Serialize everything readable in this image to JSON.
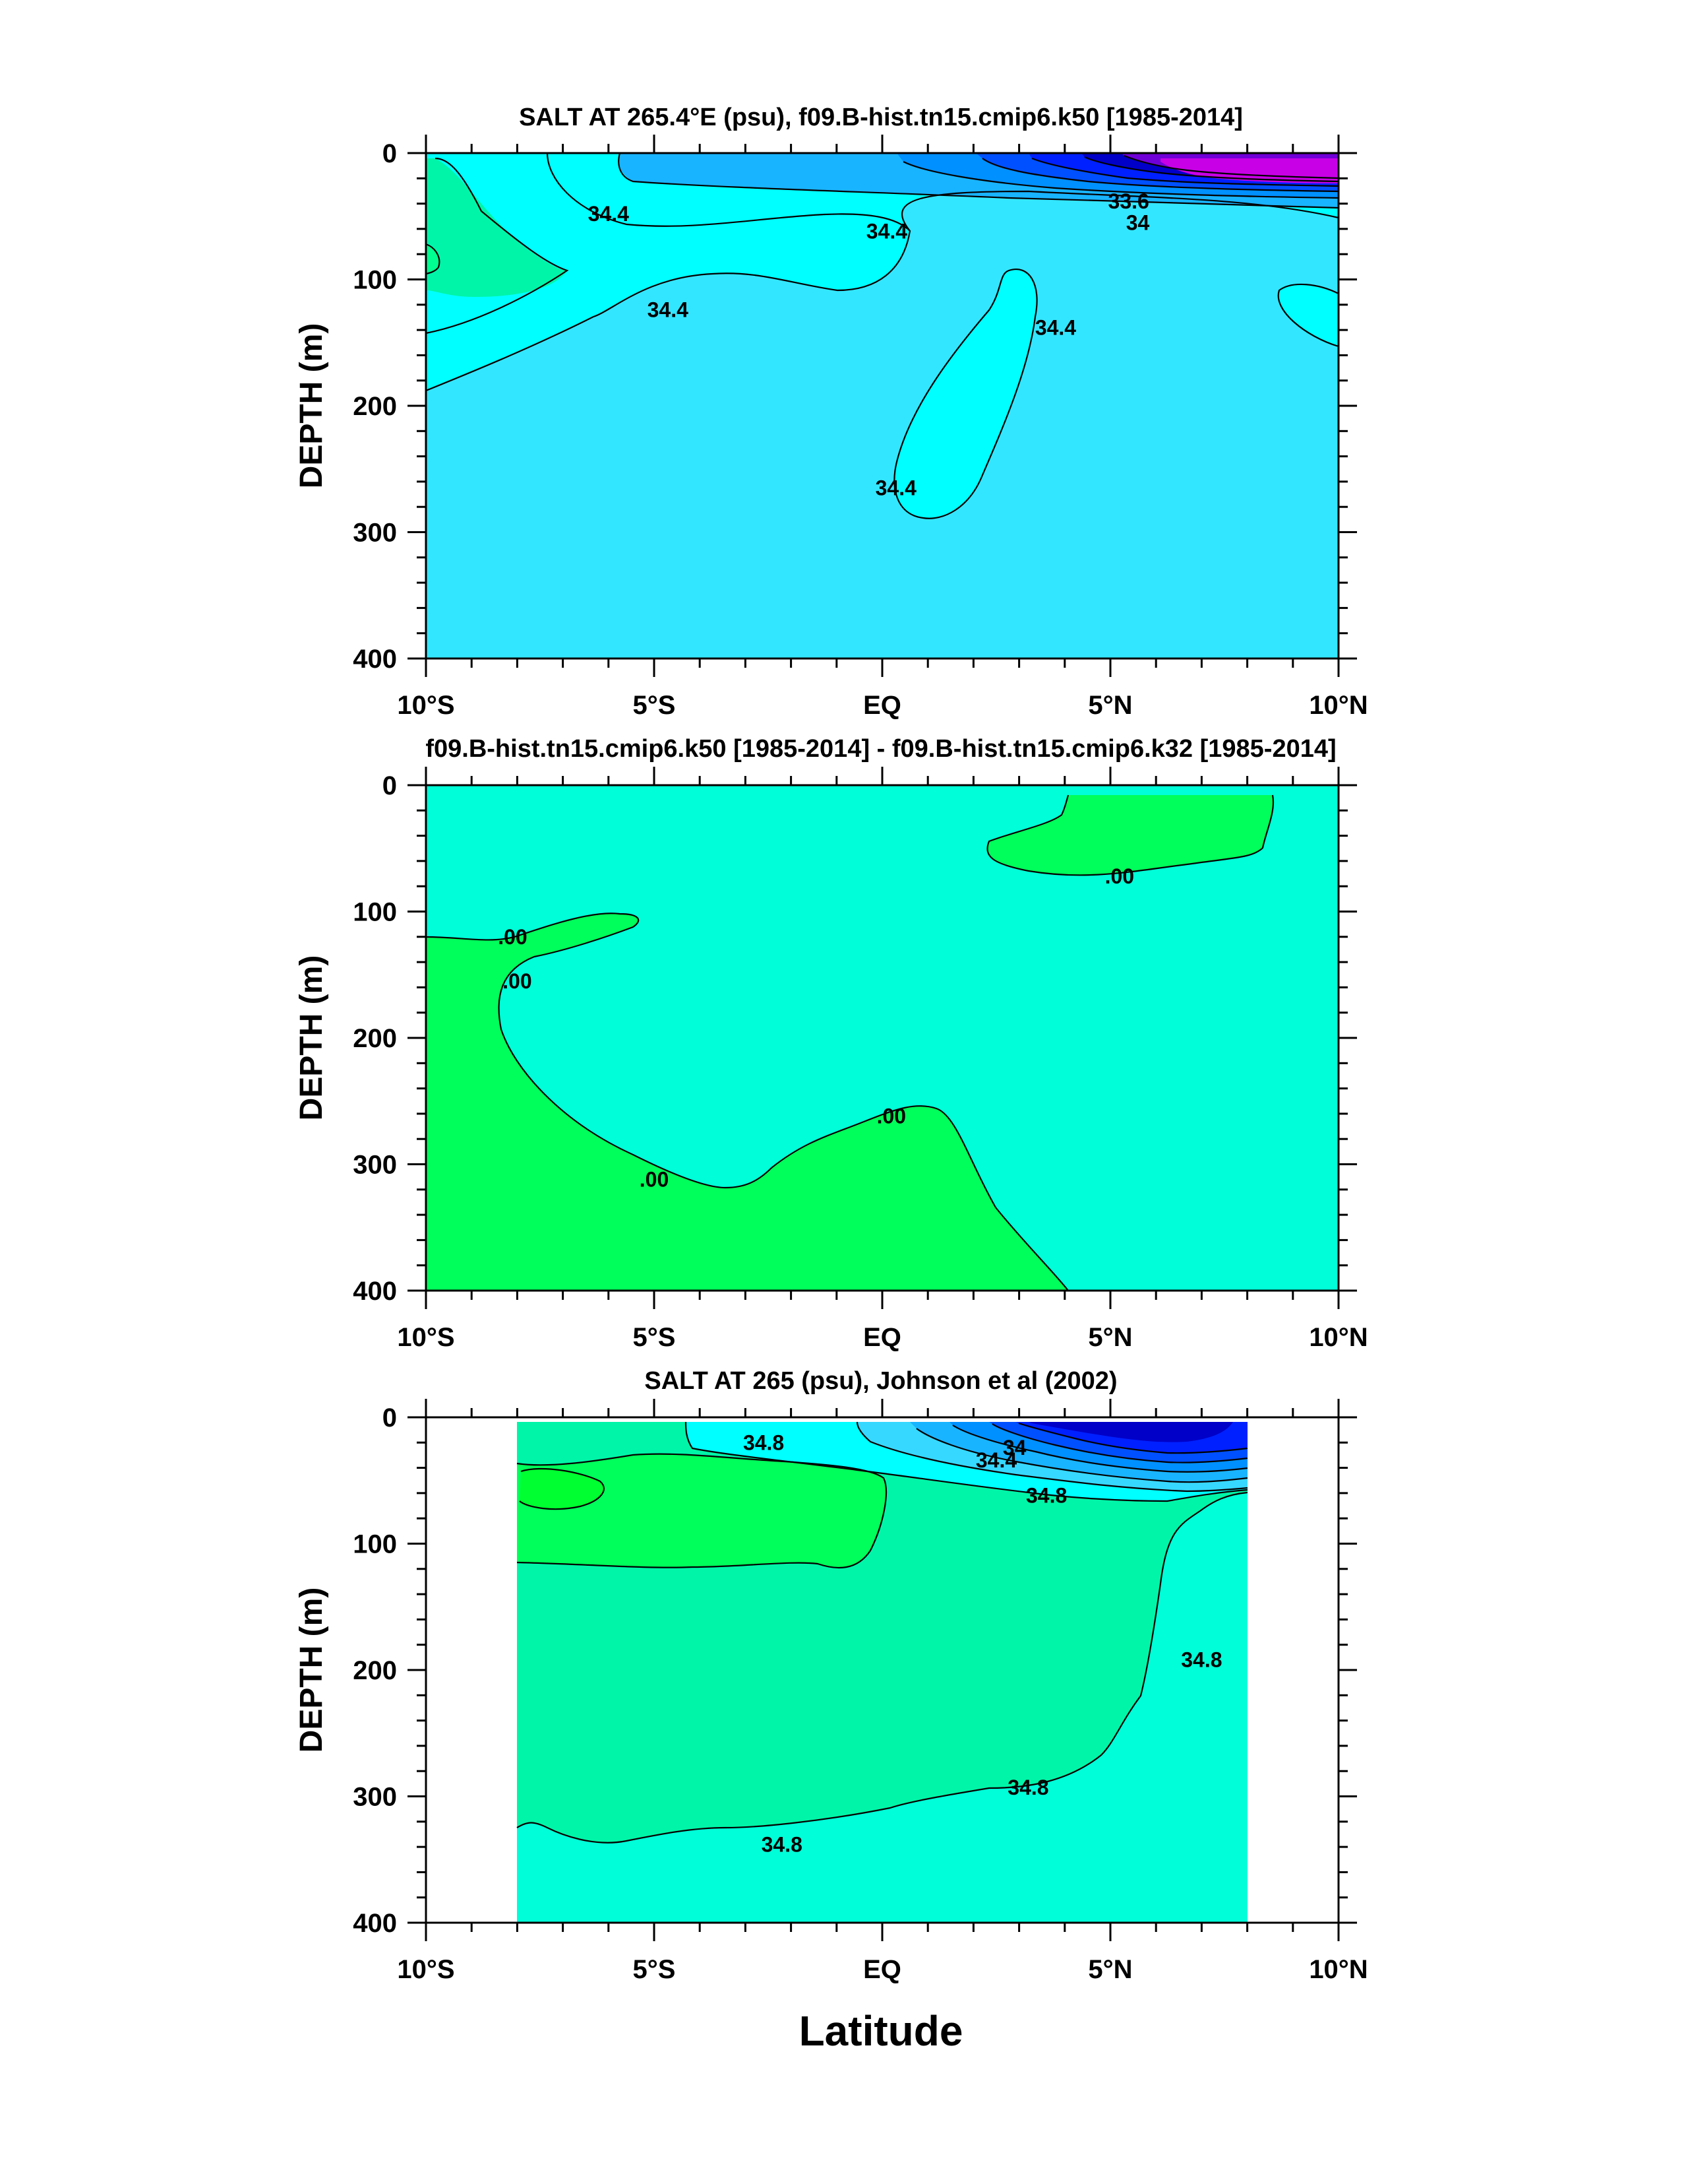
{
  "figure": {
    "xlabel": "Latitude",
    "colors": {
      "magenta": "#c800e6",
      "violet": "#6f00d8",
      "navy": "#0000c8",
      "blue": "#0020ff",
      "blue_mid": "#0050ff",
      "blue_light": "#0090ff",
      "sky": "#19b4ff",
      "sky2": "#37d8ff",
      "cyan_light": "#33e6ff",
      "cyan": "#00ffff",
      "aqua": "#00ffd8",
      "green_aqua": "#00f5a8",
      "green_light": "#00ff90",
      "green": "#00ff5a",
      "green_bright": "#00ff30"
    }
  },
  "chart_data": [
    {
      "type": "contour",
      "title": "SALT AT 265.4°E (psu), f09.B-hist.tn15.cmip6.k50 [1985-2014]",
      "xlabel": "",
      "ylabel": "DEPTH (m)",
      "xlim": [
        -10,
        10
      ],
      "ylim": [
        400,
        0
      ],
      "x_ticks": [
        -10,
        -5,
        0,
        5,
        10
      ],
      "x_tick_labels": [
        "10°S",
        "5°S",
        "EQ",
        "5°N",
        "10°N"
      ],
      "y_ticks": [
        0,
        100,
        200,
        300,
        400
      ],
      "y_tick_labels": [
        "0",
        "100",
        "200",
        "300",
        "400"
      ],
      "contour_labels": [
        {
          "text": "34.4",
          "x": -6.0,
          "y": 48
        },
        {
          "text": "34.4",
          "x": 0.1,
          "y": 62
        },
        {
          "text": "34.4",
          "x": -4.7,
          "y": 124
        },
        {
          "text": "34.4",
          "x": 3.8,
          "y": 138
        },
        {
          "text": "34.4",
          "x": 0.3,
          "y": 265
        },
        {
          "text": "33.6",
          "x": 5.4,
          "y": 38
        },
        {
          "text": "34",
          "x": 5.6,
          "y": 55
        }
      ]
    },
    {
      "type": "contour",
      "title": "f09.B-hist.tn15.cmip6.k50 [1985-2014] - f09.B-hist.tn15.cmip6.k32 [1985-2014]",
      "xlabel": "",
      "ylabel": "DEPTH (m)",
      "xlim": [
        -10,
        10
      ],
      "ylim": [
        400,
        0
      ],
      "x_ticks": [
        -10,
        -5,
        0,
        5,
        10
      ],
      "x_tick_labels": [
        "10°S",
        "5°S",
        "EQ",
        "5°N",
        "10°N"
      ],
      "y_ticks": [
        0,
        100,
        200,
        300,
        400
      ],
      "y_tick_labels": [
        "0",
        "100",
        "200",
        "300",
        "400"
      ],
      "contour_labels": [
        {
          "text": ".00",
          "x": -8.1,
          "y": 120
        },
        {
          "text": ".00",
          "x": -8.0,
          "y": 155
        },
        {
          "text": ".00",
          "x": 5.2,
          "y": 72
        },
        {
          "text": ".00",
          "x": 0.2,
          "y": 262
        },
        {
          "text": ".00",
          "x": -5.0,
          "y": 312
        }
      ]
    },
    {
      "type": "contour",
      "title": "SALT AT 265 (psu), Johnson et al (2002)",
      "xlabel": "",
      "ylabel": "DEPTH (m)",
      "xlim": [
        -10,
        10
      ],
      "ylim": [
        400,
        0
      ],
      "x_ticks": [
        -10,
        -5,
        0,
        5,
        10
      ],
      "x_tick_labels": [
        "10°S",
        "5°S",
        "EQ",
        "5°N",
        "10°N"
      ],
      "y_ticks": [
        0,
        100,
        200,
        300,
        400
      ],
      "y_tick_labels": [
        "0",
        "100",
        "200",
        "300",
        "400"
      ],
      "data_x_range": [
        -8,
        8
      ],
      "contour_labels": [
        {
          "text": "34.8",
          "x": -2.6,
          "y": 20
        },
        {
          "text": "34",
          "x": 2.9,
          "y": 24
        },
        {
          "text": "34.4",
          "x": 2.5,
          "y": 34
        },
        {
          "text": "34.8",
          "x": 3.6,
          "y": 62
        },
        {
          "text": "34.8",
          "x": 7.0,
          "y": 192
        },
        {
          "text": "34.8",
          "x": 3.2,
          "y": 293
        },
        {
          "text": "34.8",
          "x": -2.2,
          "y": 338
        }
      ]
    }
  ]
}
